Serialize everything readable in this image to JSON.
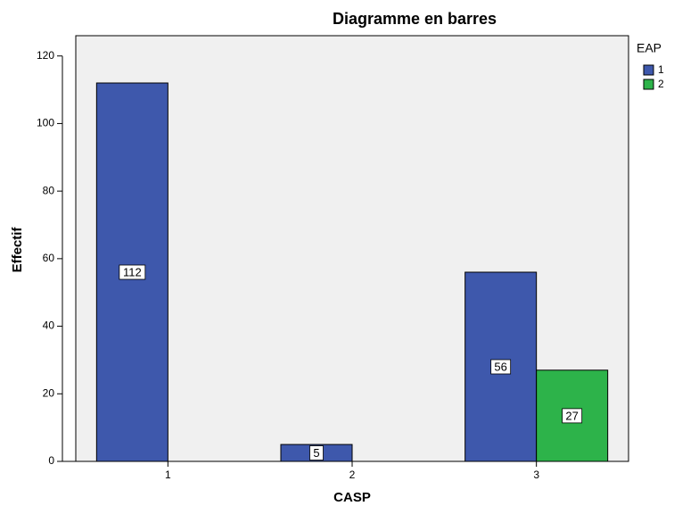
{
  "chart_data": {
    "type": "bar",
    "title": "Diagramme en barres",
    "x_label": "CASP",
    "y_label": "Effectif",
    "categories": [
      "1",
      "2",
      "3"
    ],
    "legend_title": "EAP",
    "series": [
      {
        "name": "1",
        "color": "#3e58ac",
        "values": [
          112,
          5,
          56
        ]
      },
      {
        "name": "2",
        "color": "#2db34a",
        "values": [
          null,
          null,
          27
        ]
      }
    ],
    "ylim": [
      0,
      126
    ],
    "yticks": [
      0,
      20,
      40,
      60,
      80,
      100,
      120
    ],
    "legend": "right",
    "data_labels": true
  }
}
